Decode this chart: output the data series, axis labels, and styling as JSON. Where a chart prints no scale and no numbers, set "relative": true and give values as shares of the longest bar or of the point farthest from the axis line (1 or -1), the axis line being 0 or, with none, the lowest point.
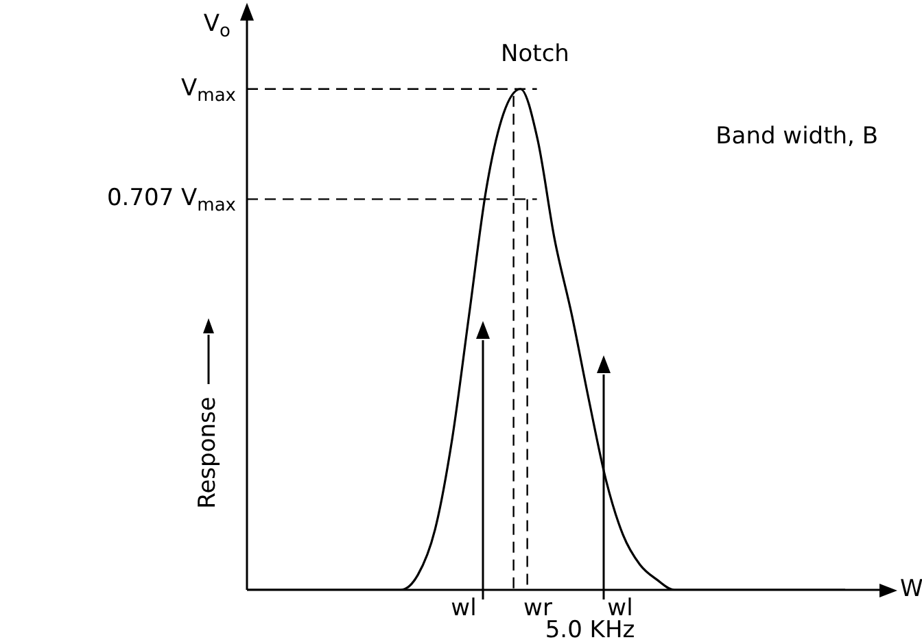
{
  "chart_data": {
    "type": "line",
    "relative": true,
    "xlabel": "W",
    "ylabel": "Response",
    "color": "#000000",
    "marker": "none",
    "line_style": "solid",
    "categories": [
      null,
      null,
      null,
      null,
      null,
      null,
      null,
      null,
      null,
      null,
      null,
      null,
      null,
      null,
      null,
      null,
      null,
      null,
      null,
      null,
      null,
      null,
      null,
      null,
      null,
      null,
      null,
      null,
      null,
      null,
      null,
      null,
      null,
      null,
      null,
      null
    ],
    "values": [
      0,
      0,
      0,
      0,
      0,
      0,
      0,
      0,
      0,
      0,
      0.03,
      0.12,
      0.3,
      0.55,
      0.8,
      0.95,
      1,
      0.9,
      0.7,
      0.55,
      0.38,
      0.22,
      0.11,
      0.05,
      0.02,
      0,
      0,
      0,
      0,
      0,
      0,
      0,
      0,
      0,
      0,
      0
    ],
    "ref_lines": [
      {
        "axis": "y",
        "value": 1,
        "label": "V$_{max}$",
        "line_style": "dashed"
      },
      {
        "axis": "y",
        "value": 0.78,
        "label": "0.707 V$_{max}$",
        "line_style": "dashed"
      }
    ],
    "annotations": [
      "V$_{o}$",
      "Notch",
      "Band width, B",
      "wl",
      "wr",
      "wl",
      "5.0 KHz"
    ]
  }
}
